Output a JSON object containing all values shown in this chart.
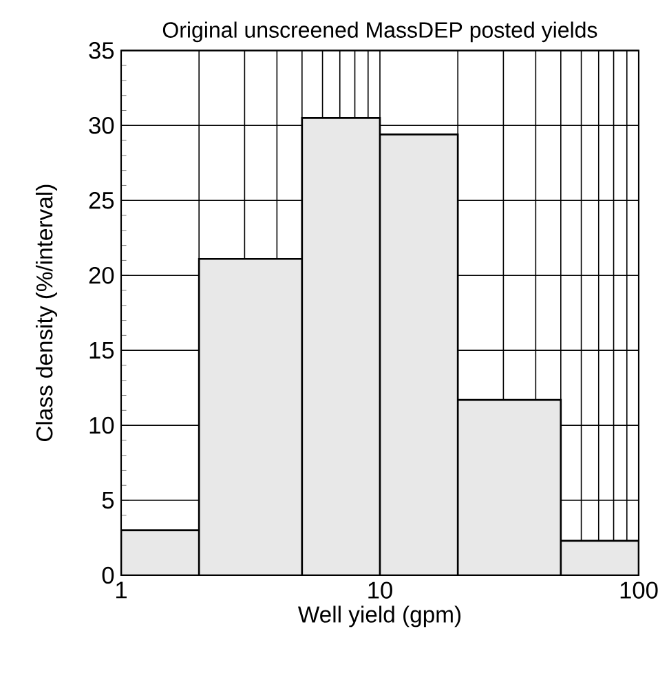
{
  "chart_data": {
    "type": "histogram",
    "title": "Original unscreened MassDEP posted yields",
    "xlabel": "Well yield (gpm)",
    "ylabel": "Class density (%/interval)",
    "bins": [
      1,
      2,
      5,
      10,
      20,
      50,
      100
    ],
    "values": [
      3,
      21.1,
      30.5,
      29.4,
      11.7,
      2.3
    ],
    "color": "#e8e8e8",
    "log": "x",
    "xlim": [
      1,
      100
    ],
    "xticks": [
      1,
      10,
      100
    ],
    "ylim": [
      0,
      35
    ],
    "yticks": [
      0,
      5,
      10,
      15,
      20,
      25,
      30,
      35
    ],
    "grid": true
  }
}
